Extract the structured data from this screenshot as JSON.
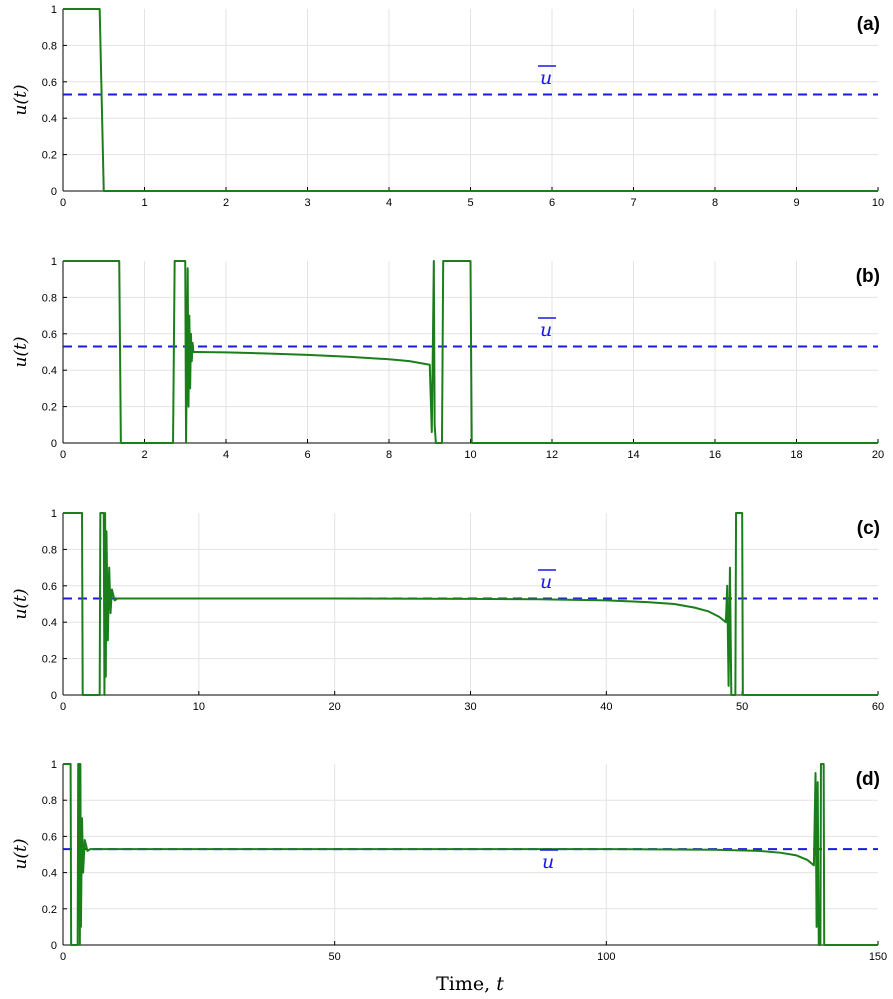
{
  "chart_data": [
    {
      "type": "line",
      "panel_label": "(a)",
      "ylabel": "u(t)",
      "xlabel": "",
      "xlim": [
        0,
        10
      ],
      "ylim": [
        0,
        1
      ],
      "xticks": [
        0,
        1,
        2,
        3,
        4,
        5,
        6,
        7,
        8,
        9,
        10
      ],
      "yticks": [
        0,
        0.2,
        0.4,
        0.6,
        0.8,
        1
      ],
      "grid": true,
      "reference_line": {
        "label": "u",
        "y": 0.53,
        "style": "dashed",
        "color": "#1a1ae6"
      },
      "series": [
        {
          "color": "#1a7f1a",
          "x": [
            0,
            0.45,
            0.5,
            10
          ],
          "y": [
            1,
            1,
            0,
            0
          ]
        }
      ]
    },
    {
      "type": "line",
      "panel_label": "(b)",
      "ylabel": "u(t)",
      "xlabel": "",
      "xlim": [
        0,
        20
      ],
      "ylim": [
        0,
        1
      ],
      "xticks": [
        0,
        2,
        4,
        6,
        8,
        10,
        12,
        14,
        16,
        18,
        20
      ],
      "yticks": [
        0,
        0.2,
        0.4,
        0.6,
        0.8,
        1
      ],
      "grid": true,
      "reference_line": {
        "label": "u",
        "y": 0.53,
        "style": "dashed",
        "color": "#1a1ae6"
      },
      "series": [
        {
          "color": "#1a7f1a",
          "x": [
            0,
            1.38,
            1.42,
            2.7,
            2.74,
            3.0,
            3.02,
            3.06,
            3.08,
            3.1,
            3.12,
            3.14,
            3.16,
            3.18,
            3.2,
            3.25,
            4,
            5,
            6,
            7,
            8,
            8.5,
            9.0,
            9.05,
            9.08,
            9.1,
            9.12,
            9.15,
            9.3,
            9.33,
            10.0,
            10.03,
            20
          ],
          "y": [
            1,
            1,
            0,
            0,
            1,
            1,
            0,
            0.96,
            0.2,
            0.7,
            0.3,
            0.6,
            0.45,
            0.55,
            0.5,
            0.5,
            0.498,
            0.492,
            0.484,
            0.474,
            0.46,
            0.45,
            0.43,
            0.06,
            0.6,
            1,
            0.1,
            0,
            0,
            1,
            1,
            0,
            0
          ]
        }
      ]
    },
    {
      "type": "line",
      "panel_label": "(c)",
      "ylabel": "u(t)",
      "xlabel": "",
      "xlim": [
        0,
        60
      ],
      "ylim": [
        0,
        1
      ],
      "xticks": [
        0,
        10,
        20,
        30,
        40,
        50,
        60
      ],
      "yticks": [
        0,
        0.2,
        0.4,
        0.6,
        0.8,
        1
      ],
      "grid": true,
      "reference_line": {
        "label": "u",
        "y": 0.53,
        "style": "dashed",
        "color": "#1a1ae6"
      },
      "series": [
        {
          "color": "#1a7f1a",
          "x": [
            0,
            1.4,
            1.45,
            2.7,
            2.75,
            3.0,
            3.05,
            3.1,
            3.15,
            3.2,
            3.3,
            3.4,
            3.5,
            3.6,
            3.8,
            4.0,
            10,
            20,
            30,
            35,
            40,
            43,
            45,
            46.5,
            47.5,
            48.3,
            48.8,
            48.9,
            49.0,
            49.1,
            49.2,
            49.3,
            49.5,
            49.55,
            50.0,
            50.05,
            60
          ],
          "y": [
            1,
            1,
            0,
            0,
            1,
            1,
            0,
            1,
            0.1,
            0.9,
            0.3,
            0.7,
            0.45,
            0.58,
            0.52,
            0.53,
            0.53,
            0.53,
            0.528,
            0.526,
            0.52,
            0.51,
            0.5,
            0.48,
            0.46,
            0.43,
            0.4,
            0.6,
            0.05,
            0.7,
            0,
            0,
            0,
            1,
            1,
            0,
            0
          ]
        }
      ]
    },
    {
      "type": "line",
      "panel_label": "(d)",
      "ylabel": "u(t)",
      "xlabel": "Time, t",
      "xlim": [
        0,
        150
      ],
      "ylim": [
        0,
        1
      ],
      "xticks": [
        0,
        50,
        100,
        150
      ],
      "yticks": [
        0,
        0.2,
        0.4,
        0.6,
        0.8,
        1
      ],
      "grid": true,
      "reference_line": {
        "label": "u",
        "y": 0.53,
        "style": "dashed",
        "color": "#1a1ae6"
      },
      "series": [
        {
          "color": "#1a7f1a",
          "x": [
            0,
            1.4,
            1.5,
            2.7,
            2.8,
            3.0,
            3.1,
            3.2,
            3.3,
            3.5,
            3.7,
            4.0,
            4.5,
            5,
            50,
            100,
            120,
            128,
            132,
            135,
            137,
            138.2,
            138.5,
            138.7,
            138.9,
            139.1,
            139.4,
            139.5,
            140.0,
            140.1,
            150
          ],
          "y": [
            1,
            1,
            0,
            0,
            1,
            1,
            0,
            1,
            0.1,
            0.7,
            0.4,
            0.58,
            0.52,
            0.53,
            0.53,
            0.53,
            0.526,
            0.52,
            0.51,
            0.495,
            0.47,
            0.44,
            0.95,
            0.1,
            0.9,
            0,
            0,
            1,
            1,
            0,
            0
          ]
        }
      ]
    }
  ]
}
